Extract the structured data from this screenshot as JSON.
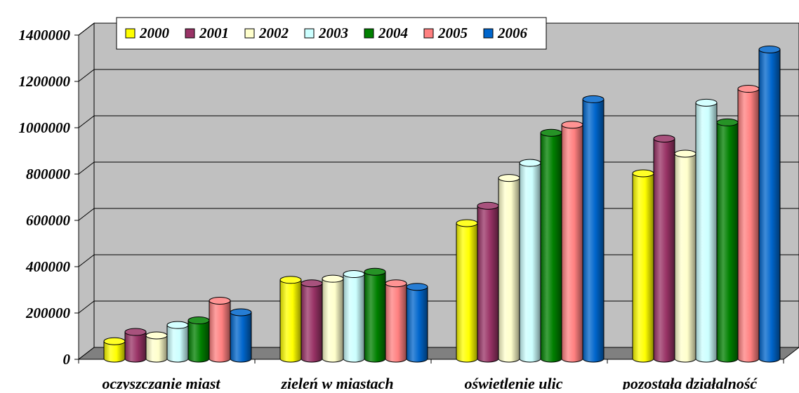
{
  "chart_data": {
    "type": "bar",
    "title": "",
    "xlabel": "",
    "ylabel": "",
    "ylim": [
      0,
      1400000
    ],
    "yticks": [
      "0",
      "200000",
      "400000",
      "600000",
      "800000",
      "1000000",
      "1200000",
      "1400000"
    ],
    "grid": true,
    "legend_position": "top-left",
    "style": "3d-cylinder",
    "categories": [
      "oczyszczanie miast",
      "zieleń w miastach",
      "oświetlenie ulic",
      "pozostała działalność"
    ],
    "series": [
      {
        "name": "2000",
        "color": "#FFFF00",
        "values": [
          75000,
          340000,
          585000,
          800000
        ]
      },
      {
        "name": "2001",
        "color": "#993366",
        "values": [
          115000,
          325000,
          660000,
          950000
        ]
      },
      {
        "name": "2002",
        "color": "#FFFFCC",
        "values": [
          100000,
          345000,
          780000,
          885000
        ]
      },
      {
        "name": "2003",
        "color": "#CCFFFF",
        "values": [
          145000,
          365000,
          845000,
          1105000
        ]
      },
      {
        "name": "2004",
        "color": "#008000",
        "values": [
          165000,
          375000,
          975000,
          1020000
        ]
      },
      {
        "name": "2005",
        "color": "#FF8080",
        "values": [
          250000,
          325000,
          1010000,
          1165000
        ]
      },
      {
        "name": "2006",
        "color": "#0066CC",
        "values": [
          200000,
          310000,
          1120000,
          1335000
        ]
      }
    ]
  },
  "colors": {
    "wall": "#C0C0C0",
    "floor": "#808080",
    "gridline": "#000000"
  }
}
